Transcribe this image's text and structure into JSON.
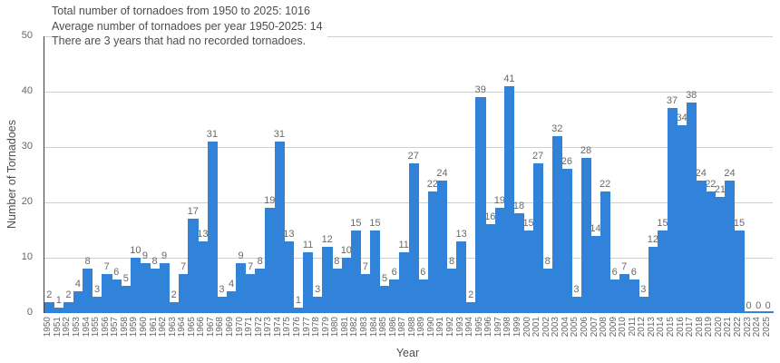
{
  "chart_data": {
    "type": "bar",
    "title_lines": [
      "Total number of tornadoes from 1950 to 2025: 1016",
      "Average number of tornadoes per year 1950-2025: 14",
      "There are 3 years that had no recorded tornadoes."
    ],
    "xlabel": "Year",
    "ylabel": "Number of Tornadoes",
    "ylim": [
      0,
      50
    ],
    "yticks": [
      0,
      10,
      20,
      30,
      40,
      50
    ],
    "grid": true,
    "legend_visible": false,
    "value_labels_visible": true,
    "categories": [
      1950,
      1951,
      1952,
      1953,
      1954,
      1955,
      1956,
      1957,
      1958,
      1959,
      1960,
      1961,
      1962,
      1963,
      1964,
      1965,
      1966,
      1967,
      1968,
      1969,
      1970,
      1971,
      1972,
      1973,
      1974,
      1975,
      1976,
      1977,
      1978,
      1979,
      1980,
      1981,
      1982,
      1983,
      1984,
      1985,
      1986,
      1987,
      1988,
      1989,
      1990,
      1991,
      1992,
      1993,
      1994,
      1995,
      1996,
      1997,
      1998,
      1999,
      2000,
      2001,
      2002,
      2003,
      2004,
      2005,
      2006,
      2007,
      2008,
      2009,
      2010,
      2011,
      2012,
      2013,
      2014,
      2015,
      2016,
      2017,
      2018,
      2019,
      2020,
      2021,
      2022,
      2023,
      2024,
      2025
    ],
    "values": [
      2,
      1,
      2,
      4,
      8,
      3,
      7,
      6,
      5,
      10,
      9,
      8,
      9,
      2,
      7,
      17,
      13,
      31,
      3,
      4,
      9,
      7,
      8,
      19,
      31,
      13,
      1,
      11,
      3,
      12,
      8,
      10,
      15,
      7,
      15,
      5,
      6,
      11,
      27,
      6,
      22,
      24,
      8,
      13,
      2,
      39,
      16,
      19,
      41,
      18,
      15,
      27,
      8,
      32,
      26,
      3,
      28,
      14,
      22,
      6,
      7,
      6,
      3,
      12,
      15,
      37,
      34,
      38,
      24,
      22,
      21,
      24,
      15,
      0,
      0,
      0
    ],
    "colors": {
      "bar": "#3182d9",
      "grid": "#cfcfcf",
      "axis_line": "#3d3d3d",
      "title_text": "#4d4d4d",
      "axis_title_text": "#4d4d4d",
      "tick_label": "#666666",
      "value_label": "#696969",
      "background": "#ffffff"
    }
  }
}
